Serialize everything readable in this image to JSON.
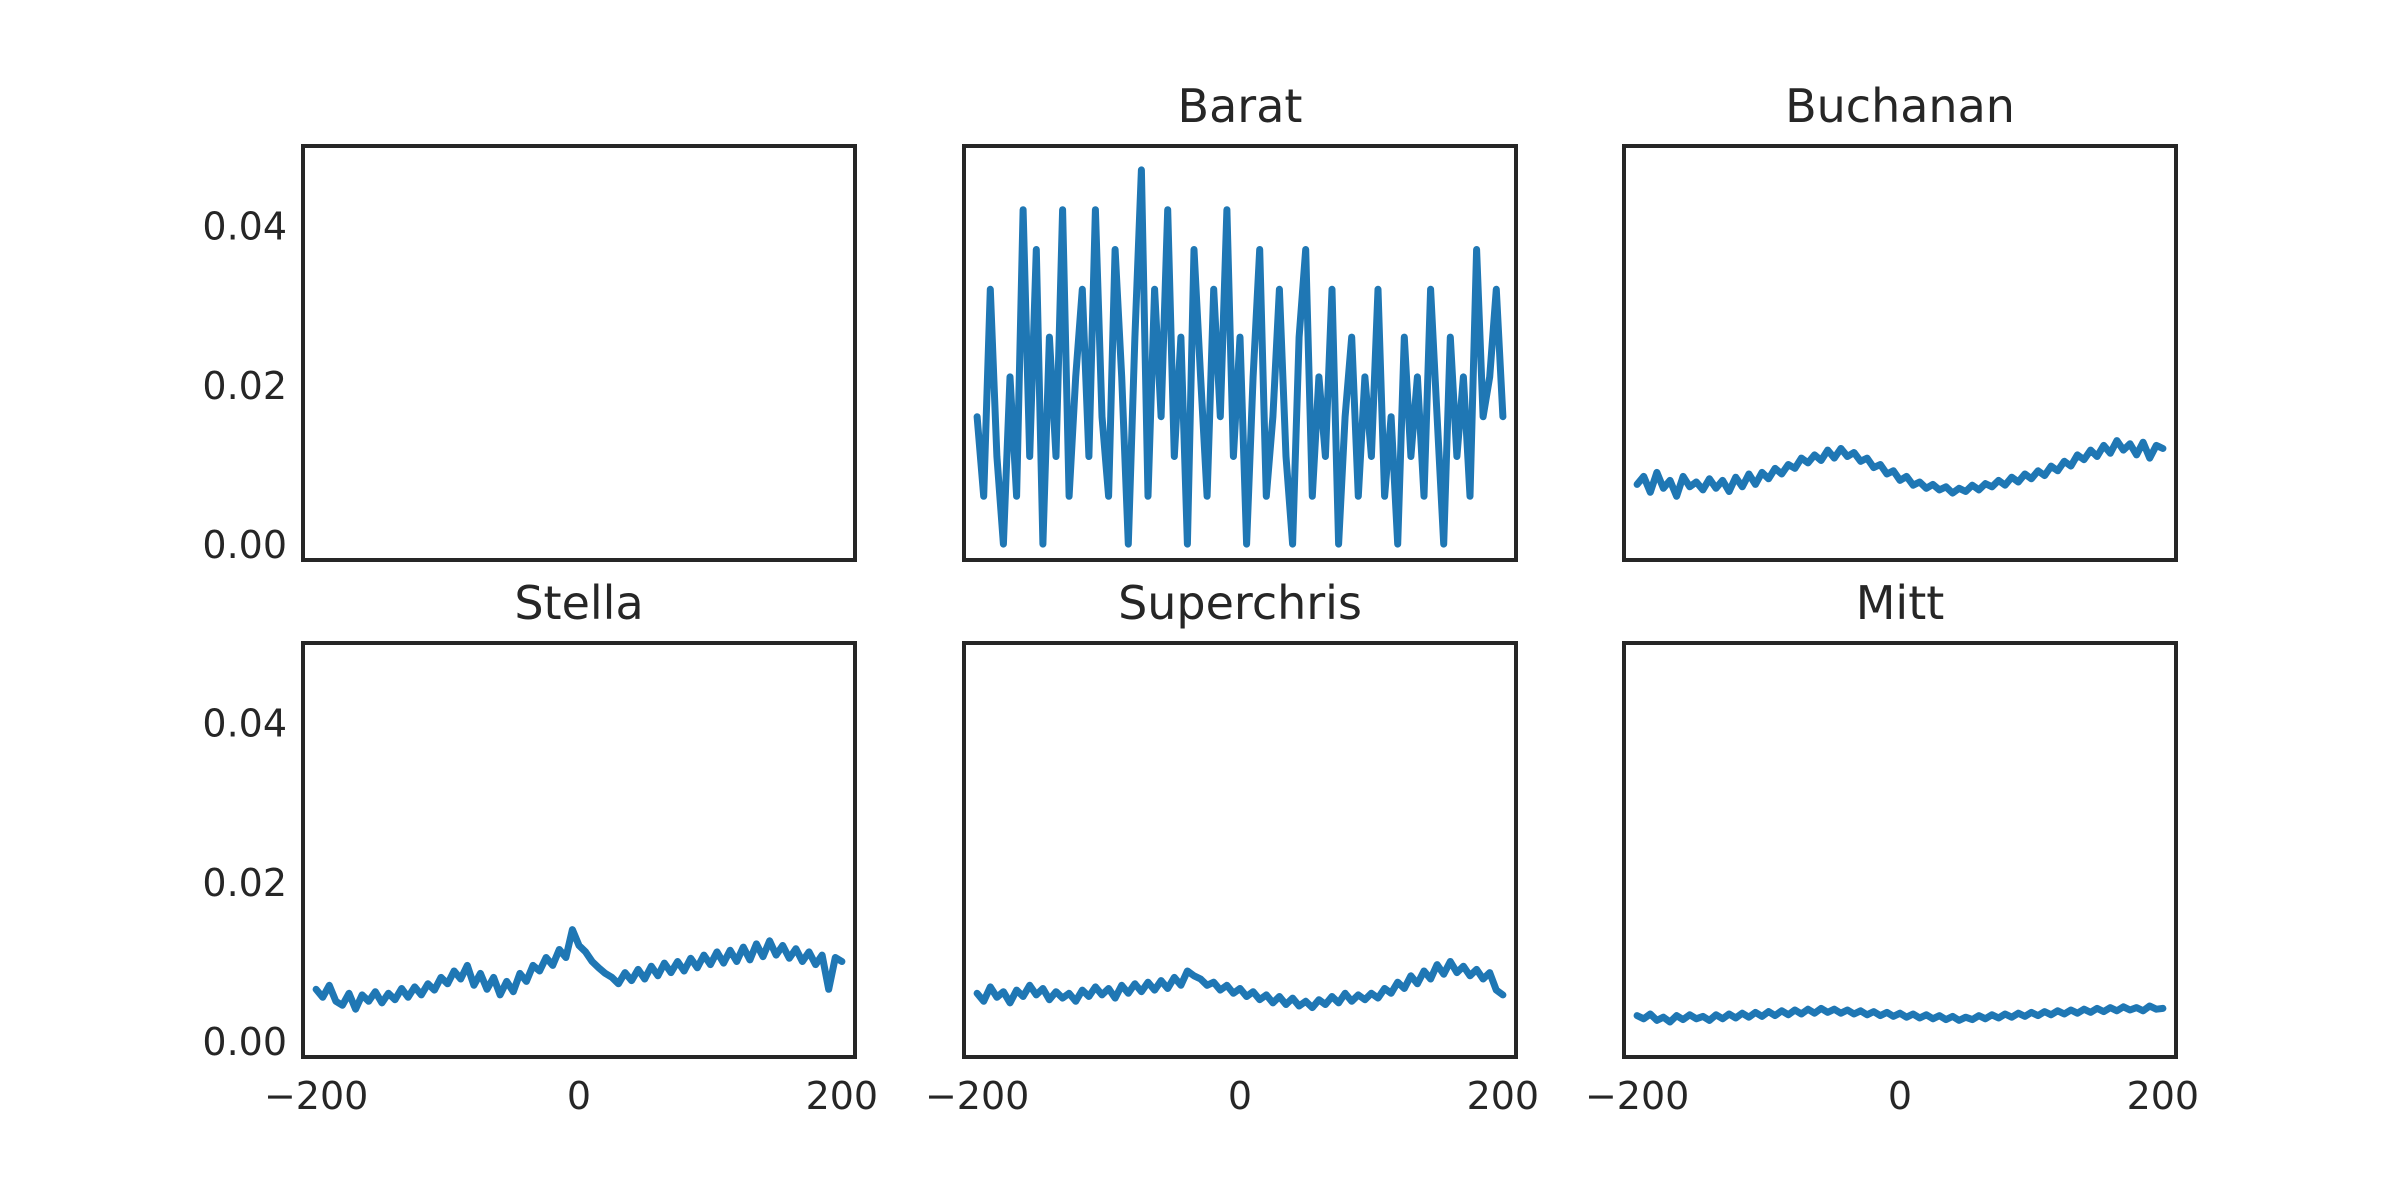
{
  "figure": {
    "layout": "2x3 grid of line panels",
    "shared_x": true,
    "shared_y": true
  },
  "chart_data": [
    {
      "type": "line",
      "title": "",
      "xlim": [
        -210,
        210
      ],
      "ylim": [
        -0.002,
        0.05
      ],
      "xticks": [
        -200,
        0,
        200
      ],
      "yticks": [
        0.0,
        0.02,
        0.04
      ],
      "xtick_labels": [
        "−200",
        "0",
        "200"
      ],
      "ytick_labels": [
        "0.00",
        "0.02",
        "0.04"
      ],
      "show_xticklabels": false,
      "show_yticklabels": true,
      "line_color": "#1f77b4",
      "series": []
    },
    {
      "type": "line",
      "title": "Barat",
      "xlim": [
        -210,
        210
      ],
      "ylim": [
        -0.002,
        0.05
      ],
      "xticks": [
        -200,
        0,
        200
      ],
      "yticks": [
        0.0,
        0.02,
        0.04
      ],
      "xtick_labels": [
        "−200",
        "0",
        "200"
      ],
      "ytick_labels": [
        "0.00",
        "0.02",
        "0.04"
      ],
      "show_xticklabels": false,
      "show_yticklabels": false,
      "line_color": "#1f77b4",
      "series": [
        {
          "x": [
            -200,
            -195,
            -190,
            -185,
            -180,
            -175,
            -170,
            -165,
            -160,
            -155,
            -150,
            -145,
            -140,
            -135,
            -130,
            -125,
            -120,
            -115,
            -110,
            -105,
            -100,
            -95,
            -90,
            -85,
            -80,
            -75,
            -70,
            -65,
            -60,
            -55,
            -50,
            -45,
            -40,
            -35,
            -30,
            -25,
            -20,
            -15,
            -10,
            -5,
            0,
            5,
            10,
            15,
            20,
            25,
            30,
            35,
            40,
            45,
            50,
            55,
            60,
            65,
            70,
            75,
            80,
            85,
            90,
            95,
            100,
            105,
            110,
            115,
            120,
            125,
            130,
            135,
            140,
            145,
            150,
            155,
            160,
            165,
            170,
            175,
            180,
            185,
            190,
            195,
            200
          ],
          "y": [
            0.016,
            0.006,
            0.032,
            0.011,
            0.0,
            0.021,
            0.006,
            0.042,
            0.011,
            0.037,
            0.0,
            0.026,
            0.011,
            0.042,
            0.006,
            0.021,
            0.032,
            0.011,
            0.042,
            0.016,
            0.006,
            0.037,
            0.021,
            0.0,
            0.026,
            0.047,
            0.006,
            0.032,
            0.016,
            0.042,
            0.011,
            0.026,
            0.0,
            0.037,
            0.021,
            0.006,
            0.032,
            0.016,
            0.042,
            0.011,
            0.026,
            0.0,
            0.021,
            0.037,
            0.006,
            0.016,
            0.032,
            0.011,
            0.0,
            0.026,
            0.037,
            0.006,
            0.021,
            0.011,
            0.032,
            0.0,
            0.016,
            0.026,
            0.006,
            0.021,
            0.011,
            0.032,
            0.006,
            0.016,
            0.0,
            0.026,
            0.011,
            0.021,
            0.006,
            0.032,
            0.016,
            0.0,
            0.026,
            0.011,
            0.021,
            0.006,
            0.037,
            0.016,
            0.021,
            0.032,
            0.016
          ]
        }
      ]
    },
    {
      "type": "line",
      "title": "Buchanan",
      "xlim": [
        -210,
        210
      ],
      "ylim": [
        -0.002,
        0.05
      ],
      "xticks": [
        -200,
        0,
        200
      ],
      "yticks": [
        0.0,
        0.02,
        0.04
      ],
      "xtick_labels": [
        "−200",
        "0",
        "200"
      ],
      "ytick_labels": [
        "0.00",
        "0.02",
        "0.04"
      ],
      "show_xticklabels": false,
      "show_yticklabels": false,
      "line_color": "#1f77b4",
      "series": [
        {
          "x": [
            -200,
            -195,
            -190,
            -185,
            -180,
            -175,
            -170,
            -165,
            -160,
            -155,
            -150,
            -145,
            -140,
            -135,
            -130,
            -125,
            -120,
            -115,
            -110,
            -105,
            -100,
            -95,
            -90,
            -85,
            -80,
            -75,
            -70,
            -65,
            -60,
            -55,
            -50,
            -45,
            -40,
            -35,
            -30,
            -25,
            -20,
            -15,
            -10,
            -5,
            0,
            5,
            10,
            15,
            20,
            25,
            30,
            35,
            40,
            45,
            50,
            55,
            60,
            65,
            70,
            75,
            80,
            85,
            90,
            95,
            100,
            105,
            110,
            115,
            120,
            125,
            130,
            135,
            140,
            145,
            150,
            155,
            160,
            165,
            170,
            175,
            180,
            185,
            190,
            195,
            200
          ],
          "y": [
            0.0075,
            0.0085,
            0.0065,
            0.009,
            0.007,
            0.008,
            0.006,
            0.0085,
            0.0072,
            0.0078,
            0.0068,
            0.0082,
            0.007,
            0.008,
            0.0066,
            0.0084,
            0.0072,
            0.0088,
            0.0075,
            0.009,
            0.0082,
            0.0095,
            0.0088,
            0.01,
            0.0095,
            0.0108,
            0.0102,
            0.0112,
            0.0105,
            0.0118,
            0.0108,
            0.012,
            0.011,
            0.0115,
            0.0104,
            0.0108,
            0.0096,
            0.01,
            0.0088,
            0.0092,
            0.008,
            0.0085,
            0.0074,
            0.0078,
            0.007,
            0.0075,
            0.0068,
            0.0072,
            0.0064,
            0.007,
            0.0066,
            0.0074,
            0.0068,
            0.0076,
            0.0072,
            0.008,
            0.0074,
            0.0084,
            0.0078,
            0.0088,
            0.0082,
            0.0092,
            0.0086,
            0.0098,
            0.0092,
            0.0104,
            0.0098,
            0.0112,
            0.0106,
            0.0118,
            0.011,
            0.0124,
            0.0114,
            0.013,
            0.0118,
            0.0126,
            0.0112,
            0.0128,
            0.0108,
            0.0124,
            0.012
          ]
        }
      ]
    },
    {
      "type": "line",
      "title": "Stella",
      "xlim": [
        -210,
        210
      ],
      "ylim": [
        -0.002,
        0.05
      ],
      "xticks": [
        -200,
        0,
        200
      ],
      "yticks": [
        0.0,
        0.02,
        0.04
      ],
      "xtick_labels": [
        "−200",
        "0",
        "200"
      ],
      "ytick_labels": [
        "0.00",
        "0.02",
        "0.04"
      ],
      "show_xticklabels": true,
      "show_yticklabels": true,
      "line_color": "#1f77b4",
      "series": [
        {
          "x": [
            -200,
            -195,
            -190,
            -185,
            -180,
            -175,
            -170,
            -165,
            -160,
            -155,
            -150,
            -145,
            -140,
            -135,
            -130,
            -125,
            -120,
            -115,
            -110,
            -105,
            -100,
            -95,
            -90,
            -85,
            -80,
            -75,
            -70,
            -65,
            -60,
            -55,
            -50,
            -45,
            -40,
            -35,
            -30,
            -25,
            -20,
            -15,
            -10,
            -5,
            0,
            5,
            10,
            15,
            20,
            25,
            30,
            35,
            40,
            45,
            50,
            55,
            60,
            65,
            70,
            75,
            80,
            85,
            90,
            95,
            100,
            105,
            110,
            115,
            120,
            125,
            130,
            135,
            140,
            145,
            150,
            155,
            160,
            165,
            170,
            175,
            180,
            185,
            190,
            195,
            200
          ],
          "y": [
            0.0065,
            0.0055,
            0.007,
            0.005,
            0.0045,
            0.006,
            0.004,
            0.0058,
            0.005,
            0.0062,
            0.0048,
            0.006,
            0.0052,
            0.0066,
            0.0055,
            0.0068,
            0.0058,
            0.0072,
            0.0064,
            0.008,
            0.0072,
            0.0088,
            0.0078,
            0.0095,
            0.007,
            0.0085,
            0.0065,
            0.008,
            0.0058,
            0.0075,
            0.0062,
            0.0085,
            0.0075,
            0.0095,
            0.0088,
            0.0105,
            0.0095,
            0.0115,
            0.0105,
            0.014,
            0.012,
            0.0112,
            0.01,
            0.0092,
            0.0085,
            0.008,
            0.0072,
            0.0086,
            0.0076,
            0.009,
            0.0078,
            0.0094,
            0.0082,
            0.0098,
            0.0086,
            0.01,
            0.0088,
            0.0104,
            0.0092,
            0.0108,
            0.0096,
            0.0112,
            0.0098,
            0.0114,
            0.01,
            0.0118,
            0.0102,
            0.0122,
            0.0106,
            0.0126,
            0.0108,
            0.012,
            0.0104,
            0.0116,
            0.01,
            0.0112,
            0.0096,
            0.0108,
            0.0065,
            0.0105,
            0.01
          ]
        }
      ]
    },
    {
      "type": "line",
      "title": "Superchris",
      "xlim": [
        -210,
        210
      ],
      "ylim": [
        -0.002,
        0.05
      ],
      "xticks": [
        -200,
        0,
        200
      ],
      "yticks": [
        0.0,
        0.02,
        0.04
      ],
      "xtick_labels": [
        "−200",
        "0",
        "200"
      ],
      "ytick_labels": [
        "0.00",
        "0.02",
        "0.04"
      ],
      "show_xticklabels": true,
      "show_yticklabels": false,
      "line_color": "#1f77b4",
      "series": [
        {
          "x": [
            -200,
            -195,
            -190,
            -185,
            -180,
            -175,
            -170,
            -165,
            -160,
            -155,
            -150,
            -145,
            -140,
            -135,
            -130,
            -125,
            -120,
            -115,
            -110,
            -105,
            -100,
            -95,
            -90,
            -85,
            -80,
            -75,
            -70,
            -65,
            -60,
            -55,
            -50,
            -45,
            -40,
            -35,
            -30,
            -25,
            -20,
            -15,
            -10,
            -5,
            0,
            5,
            10,
            15,
            20,
            25,
            30,
            35,
            40,
            45,
            50,
            55,
            60,
            65,
            70,
            75,
            80,
            85,
            90,
            95,
            100,
            105,
            110,
            115,
            120,
            125,
            130,
            135,
            140,
            145,
            150,
            155,
            160,
            165,
            170,
            175,
            180,
            185,
            190,
            195,
            200
          ],
          "y": [
            0.006,
            0.005,
            0.0068,
            0.0055,
            0.0062,
            0.0048,
            0.0064,
            0.0056,
            0.007,
            0.0058,
            0.0066,
            0.0052,
            0.0062,
            0.0054,
            0.006,
            0.005,
            0.0064,
            0.0056,
            0.0068,
            0.0058,
            0.0066,
            0.0054,
            0.007,
            0.006,
            0.0072,
            0.0062,
            0.0074,
            0.0064,
            0.0076,
            0.0066,
            0.008,
            0.007,
            0.0088,
            0.0082,
            0.0078,
            0.007,
            0.0074,
            0.0064,
            0.007,
            0.006,
            0.0066,
            0.0056,
            0.0062,
            0.0052,
            0.0058,
            0.0048,
            0.0056,
            0.0046,
            0.0054,
            0.0044,
            0.005,
            0.0042,
            0.0052,
            0.0046,
            0.0056,
            0.0048,
            0.006,
            0.005,
            0.0058,
            0.0052,
            0.006,
            0.0054,
            0.0066,
            0.006,
            0.0074,
            0.0066,
            0.0082,
            0.0072,
            0.0088,
            0.0078,
            0.0096,
            0.0084,
            0.01,
            0.0086,
            0.0094,
            0.0082,
            0.009,
            0.0078,
            0.0086,
            0.0064,
            0.0058
          ]
        }
      ]
    },
    {
      "type": "line",
      "title": "Mitt",
      "xlim": [
        -210,
        210
      ],
      "ylim": [
        -0.002,
        0.05
      ],
      "xticks": [
        -200,
        0,
        200
      ],
      "yticks": [
        0.0,
        0.02,
        0.04
      ],
      "xtick_labels": [
        "−200",
        "0",
        "200"
      ],
      "ytick_labels": [
        "0.00",
        "0.02",
        "0.04"
      ],
      "show_xticklabels": true,
      "show_yticklabels": false,
      "line_color": "#1f77b4",
      "series": [
        {
          "x": [
            -200,
            -195,
            -190,
            -185,
            -180,
            -175,
            -170,
            -165,
            -160,
            -155,
            -150,
            -145,
            -140,
            -135,
            -130,
            -125,
            -120,
            -115,
            -110,
            -105,
            -100,
            -95,
            -90,
            -85,
            -80,
            -75,
            -70,
            -65,
            -60,
            -55,
            -50,
            -45,
            -40,
            -35,
            -30,
            -25,
            -20,
            -15,
            -10,
            -5,
            0,
            5,
            10,
            15,
            20,
            25,
            30,
            35,
            40,
            45,
            50,
            55,
            60,
            65,
            70,
            75,
            80,
            85,
            90,
            95,
            100,
            105,
            110,
            115,
            120,
            125,
            130,
            135,
            140,
            145,
            150,
            155,
            160,
            165,
            170,
            175,
            180,
            185,
            190,
            195,
            200
          ],
          "y": [
            0.0032,
            0.0028,
            0.0034,
            0.0026,
            0.003,
            0.0024,
            0.0032,
            0.0027,
            0.0033,
            0.0028,
            0.0031,
            0.0026,
            0.0033,
            0.0028,
            0.0034,
            0.0029,
            0.0035,
            0.003,
            0.0036,
            0.0031,
            0.0037,
            0.0032,
            0.0038,
            0.0033,
            0.0039,
            0.0034,
            0.004,
            0.0035,
            0.0041,
            0.0036,
            0.004,
            0.0035,
            0.0039,
            0.0034,
            0.0038,
            0.0033,
            0.0037,
            0.0032,
            0.0036,
            0.0031,
            0.0035,
            0.003,
            0.0034,
            0.0029,
            0.0033,
            0.0028,
            0.0032,
            0.0027,
            0.0031,
            0.0026,
            0.003,
            0.0027,
            0.0032,
            0.0028,
            0.0033,
            0.0029,
            0.0034,
            0.003,
            0.0035,
            0.0031,
            0.0036,
            0.0032,
            0.0037,
            0.0033,
            0.0038,
            0.0034,
            0.0039,
            0.0035,
            0.004,
            0.0036,
            0.0041,
            0.0037,
            0.0042,
            0.0038,
            0.0043,
            0.0039,
            0.0042,
            0.0038,
            0.0044,
            0.004,
            0.0041
          ]
        }
      ]
    }
  ]
}
